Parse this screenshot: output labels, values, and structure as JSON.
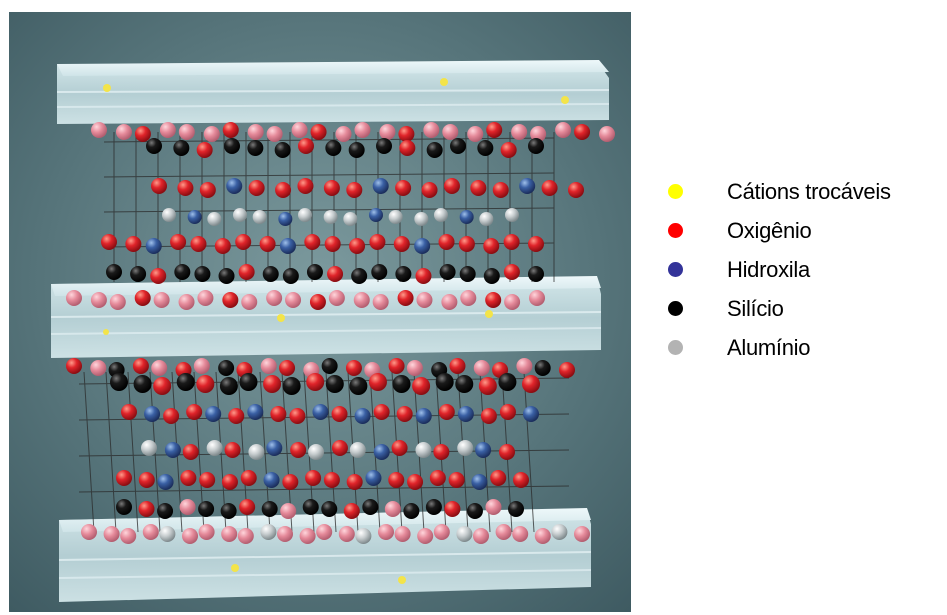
{
  "legend": {
    "items": [
      {
        "label": "Cátions trocáveis",
        "color": "#ffff00",
        "name": "legend-item-cations"
      },
      {
        "label": "Oxigênio",
        "color": "#ff0000",
        "name": "legend-item-oxigenio"
      },
      {
        "label": "Hidroxila",
        "color": "#333399",
        "name": "legend-item-hidroxila"
      },
      {
        "label": "Silício",
        "color": "#000000",
        "name": "legend-item-silicio"
      },
      {
        "label": "Alumínio",
        "color": "#b3b3b3",
        "name": "legend-item-aluminio"
      }
    ]
  },
  "colors": {
    "background": "#4f6e75",
    "slab": "#d6ecef",
    "oxygen": "#e8232a",
    "oxygen_faded": "#e98a9a",
    "hydroxyl": "#3c5fa0",
    "silicon": "#111111",
    "aluminum": "#c9cfd2",
    "cation": "#f3e44a"
  }
}
